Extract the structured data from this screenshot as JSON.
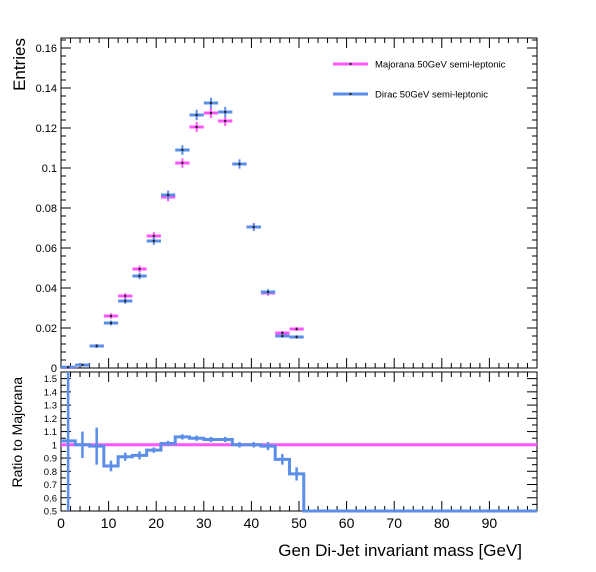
{
  "chart_data": [
    {
      "type": "scatter",
      "ylabel": "Entries",
      "xlim": [
        0,
        100
      ],
      "ylim": [
        0,
        0.165
      ],
      "x_bin_width": 3,
      "x_ticks": [
        0,
        10,
        20,
        30,
        40,
        50,
        60,
        70,
        80,
        90
      ],
      "y_ticks": [
        0,
        0.02,
        0.04,
        0.06,
        0.08,
        0.1,
        0.12,
        0.14,
        0.16
      ],
      "y_tick_labels": [
        "0",
        "0.02",
        "0.04",
        "0.06",
        "0.08",
        "0.1",
        "0.12",
        "0.14",
        "0.16"
      ],
      "legend_position": "top-right",
      "series": [
        {
          "name": "Majorana 50GeV semi-leptonic",
          "color": "#ff55ff",
          "x": [
            1.5,
            4.5,
            7.5,
            10.5,
            13.5,
            16.5,
            19.5,
            22.5,
            25.5,
            28.5,
            31.5,
            34.5,
            37.5,
            40.5,
            43.5,
            46.5,
            49.5
          ],
          "values": [
            0.0003,
            0.0015,
            0.011,
            0.026,
            0.036,
            0.0495,
            0.066,
            0.0855,
            0.1025,
            0.1205,
            0.1275,
            0.1235,
            0.102,
            0.0705,
            0.0375,
            0.0175,
            0.0195
          ],
          "errors": [
            0.0002,
            0.0004,
            0.001,
            0.0013,
            0.0015,
            0.0017,
            0.0019,
            0.0021,
            0.0023,
            0.0025,
            0.0025,
            0.0025,
            0.0023,
            0.0019,
            0.0014,
            0.001,
            0.001
          ]
        },
        {
          "name": "Dirac 50GeV semi-leptonic",
          "color": "#5a8ee8",
          "x": [
            1.5,
            4.5,
            7.5,
            10.5,
            13.5,
            16.5,
            19.5,
            22.5,
            25.5,
            28.5,
            31.5,
            34.5,
            37.5,
            40.5,
            43.5,
            46.5,
            49.5
          ],
          "values": [
            0.0004,
            0.0015,
            0.011,
            0.0225,
            0.0335,
            0.046,
            0.0635,
            0.0865,
            0.109,
            0.1265,
            0.1325,
            0.128,
            0.102,
            0.0705,
            0.038,
            0.016,
            0.0155
          ],
          "errors": [
            0.0002,
            0.0004,
            0.001,
            0.0012,
            0.0014,
            0.0016,
            0.0019,
            0.0022,
            0.0024,
            0.0026,
            0.0026,
            0.0026,
            0.0023,
            0.0019,
            0.0014,
            0.0009,
            0.0009
          ]
        }
      ]
    },
    {
      "type": "line",
      "xlabel": "Gen Di-Jet invariant mass [GeV]",
      "ylabel": "Ratio to Majorana",
      "xlim": [
        0,
        100
      ],
      "ylim": [
        0.5,
        1.55
      ],
      "x_ticks": [
        0,
        10,
        20,
        30,
        40,
        50,
        60,
        70,
        80,
        90
      ],
      "y_ticks": [
        0.5,
        0.6,
        0.7,
        0.8,
        0.9,
        1,
        1.1,
        1.2,
        1.3,
        1.4,
        1.5
      ],
      "y_tick_labels": [
        "0.5",
        "0.6",
        "0.7",
        "0.8",
        "0.9",
        "1",
        "1.1",
        "1.2",
        "1.3",
        "1.4",
        "1.5"
      ],
      "reference_value": 1.0,
      "reference_color": "#ff55ff",
      "series": [
        {
          "color": "#5a8ee8",
          "bin_edges": [
            0,
            3,
            6,
            9,
            12,
            15,
            18,
            21,
            24,
            27,
            30,
            33,
            36,
            39,
            42,
            45,
            48,
            51,
            100
          ],
          "values": [
            1.03,
            1.0,
            0.99,
            0.84,
            0.91,
            0.92,
            0.96,
            1.01,
            1.06,
            1.05,
            1.04,
            1.04,
            1.0,
            1.0,
            0.99,
            0.89,
            0.78,
            0.5
          ],
          "errors": [
            0.55,
            0.1,
            0.14,
            0.04,
            0.03,
            0.03,
            0.02,
            0.02,
            0.02,
            0.02,
            0.02,
            0.02,
            0.02,
            0.02,
            0.03,
            0.04,
            0.05,
            0
          ]
        }
      ]
    }
  ]
}
